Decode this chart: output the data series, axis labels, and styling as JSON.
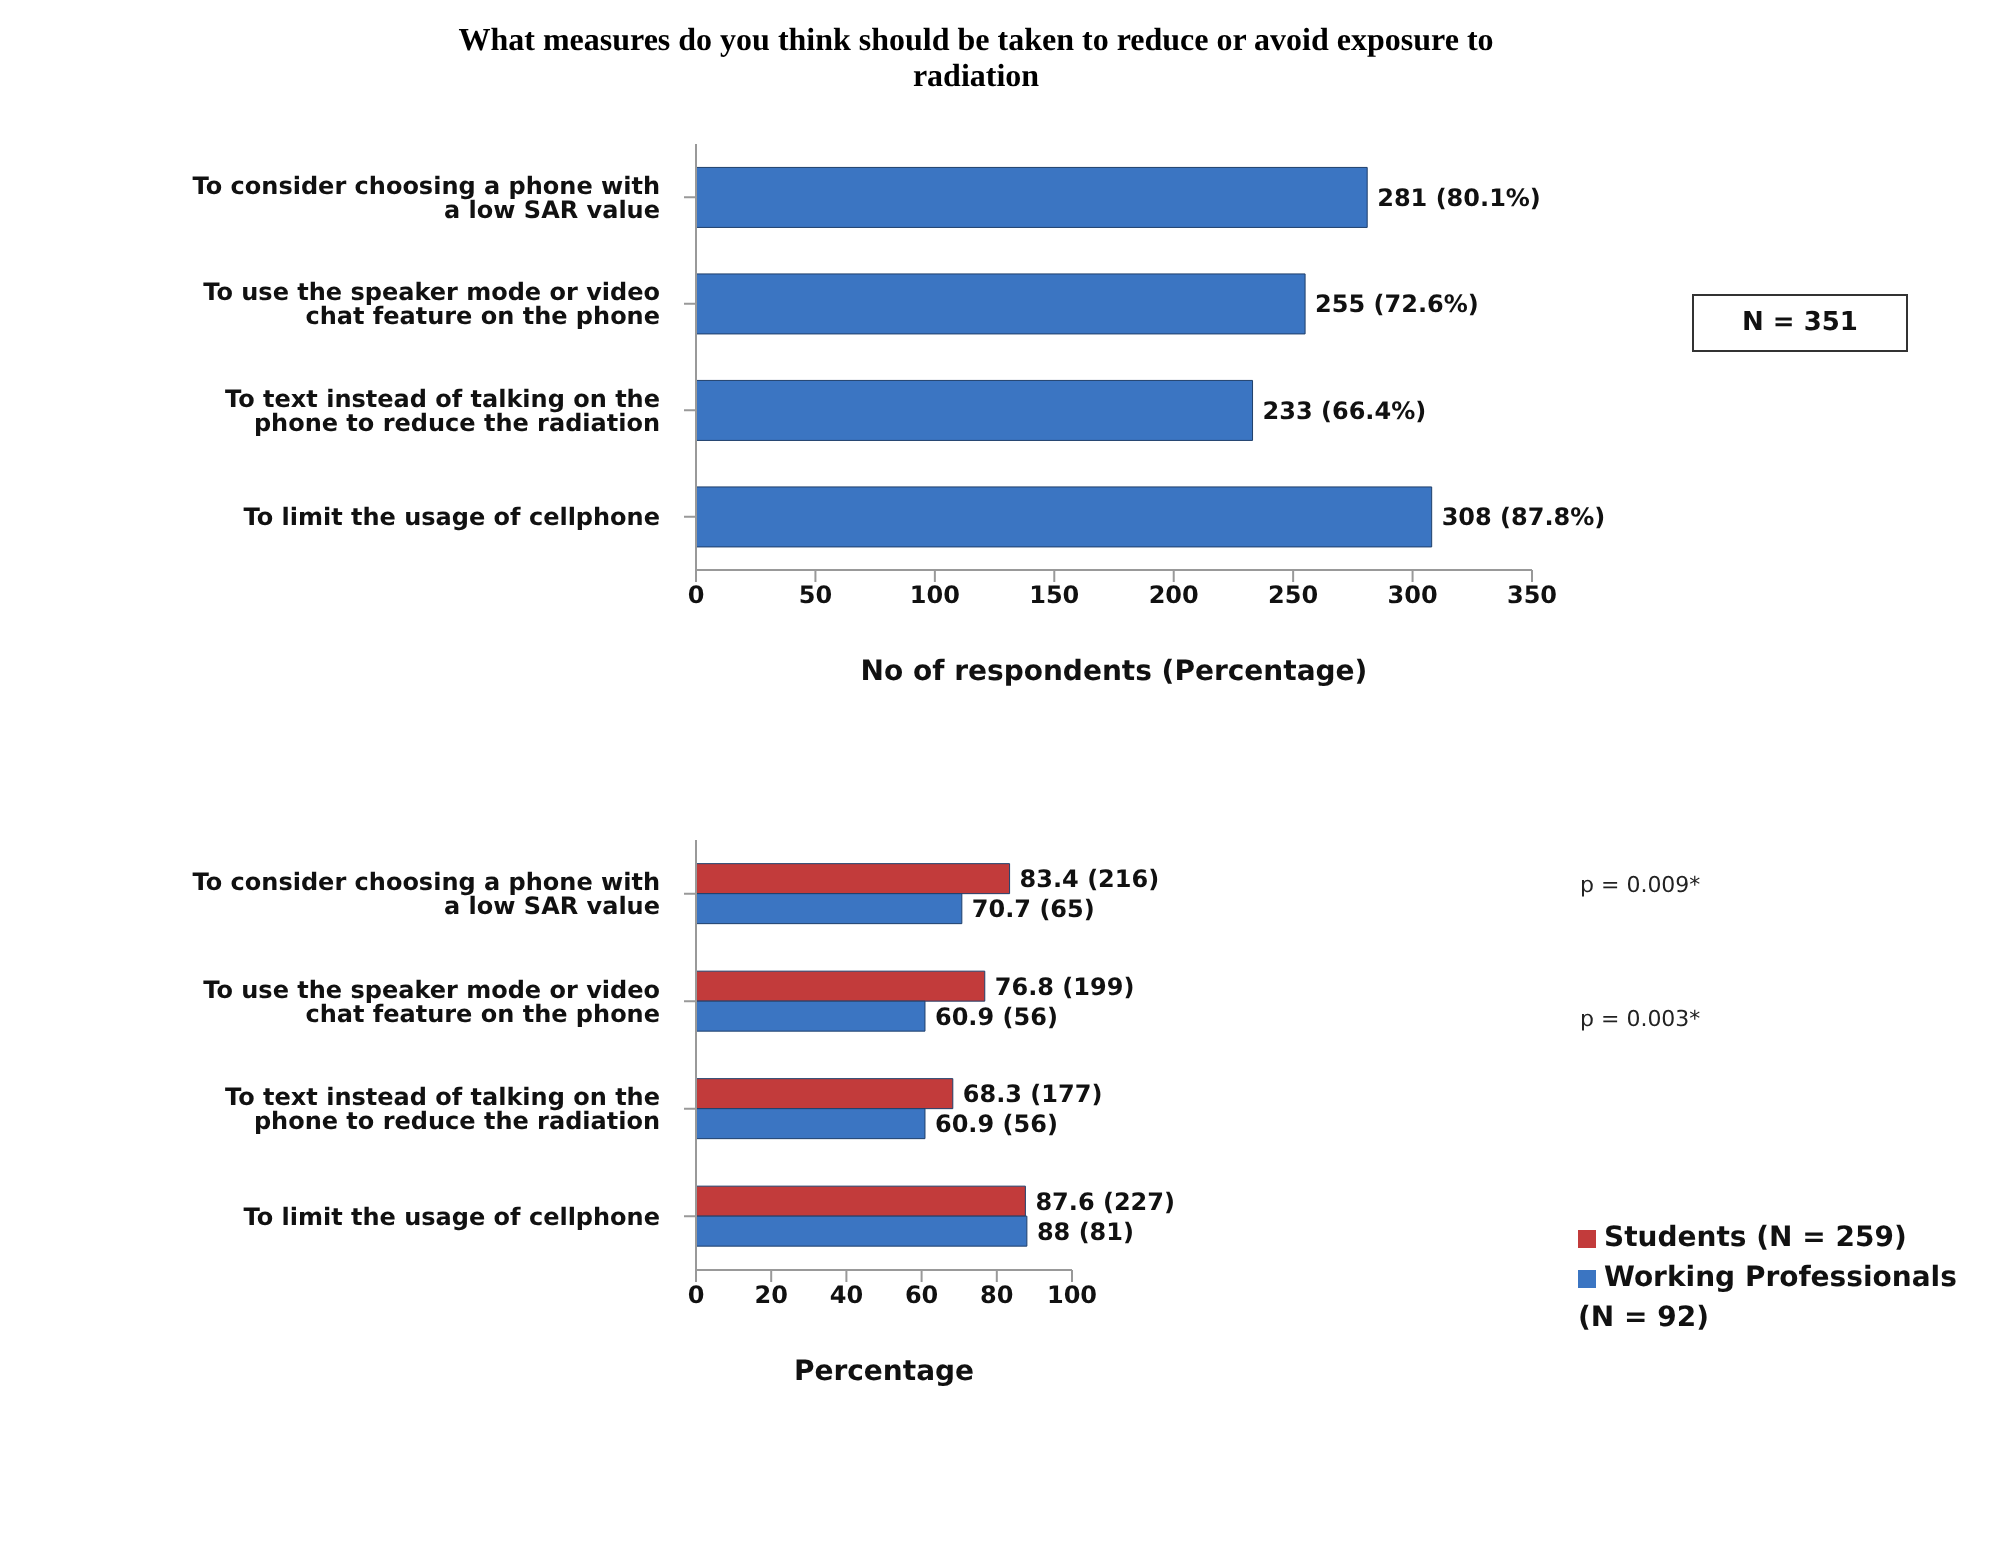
{
  "chart_data": [
    {
      "type": "bar",
      "orientation": "horizontal",
      "title": "What measures do you think should be taken to reduce or avoid exposure to radiation",
      "categories": [
        "To consider choosing a phone with a low SAR value",
        "To use the speaker mode or video chat feature on the phone",
        "To text instead of talking on the phone to reduce the radiation",
        "To limit the usage of cellphone"
      ],
      "series": [
        {
          "color": "#3b75c2",
          "values": [
            281,
            255,
            233,
            308
          ],
          "value_labels": [
            "281 (80.1%)",
            "255 (72.6%)",
            "233 (66.4%)",
            "308 (87.8%)"
          ]
        }
      ],
      "xlim": [
        0,
        350
      ],
      "xticks": [
        0,
        50,
        100,
        150,
        200,
        250,
        300,
        350
      ],
      "xlabel": "No of respondents (Percentage)",
      "annotations": [
        "N = 351"
      ],
      "grid": false,
      "legend": false
    },
    {
      "type": "bar",
      "orientation": "horizontal",
      "categories": [
        "To consider choosing a phone with a low SAR value",
        "To use the speaker mode or video chat feature on the phone",
        "To text instead of talking on the phone to reduce the radiation",
        "To limit the usage of cellphone"
      ],
      "series": [
        {
          "name": "Students (N = 259)",
          "color": "#c23b3b",
          "values": [
            83.4,
            76.8,
            68.3,
            87.6
          ],
          "value_labels": [
            "83.4 (216)",
            "76.8 (199)",
            "68.3 (177)",
            "87.6 (227)"
          ]
        },
        {
          "name": "Working Professionals (N = 92)",
          "color": "#3b75c2",
          "values": [
            70.7,
            60.9,
            60.9,
            88
          ],
          "value_labels": [
            "70.7 (65)",
            "60.9 (56)",
            "60.9 (56)",
            "88 (81)"
          ]
        }
      ],
      "xlim": [
        0,
        100
      ],
      "xticks": [
        0,
        20,
        40,
        60,
        80,
        100
      ],
      "xlabel": "Percentage",
      "annotations": [
        "p = 0.009*",
        "p = 0.003*"
      ],
      "grid": false,
      "legend": "right"
    }
  ]
}
